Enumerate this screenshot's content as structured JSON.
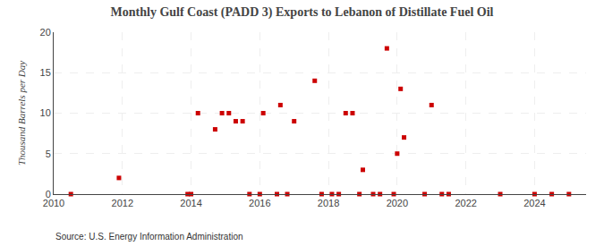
{
  "chart_data": {
    "type": "scatter",
    "title": "Monthly Gulf Coast (PADD 3) Exports to Lebanon of Distillate Fuel Oil",
    "ylabel": "Thousand Barrels per Day",
    "annotations": [
      "Source: U.S. Energy Information Administration"
    ],
    "color": "#cc0000",
    "marker": "square",
    "grid": true,
    "xlim": [
      2010,
      2025.5
    ],
    "xticks": [
      2010,
      2012,
      2014,
      2016,
      2018,
      2020,
      2022,
      2024
    ],
    "ylim": [
      0,
      20
    ],
    "yticks": [
      0,
      5,
      10,
      15,
      20
    ],
    "x": [
      2010.5,
      2011.9,
      2013.9,
      2014.0,
      2014.2,
      2014.7,
      2014.9,
      2015.1,
      2015.3,
      2015.5,
      2015.7,
      2016.0,
      2016.1,
      2016.5,
      2016.6,
      2016.8,
      2017.0,
      2017.6,
      2017.8,
      2018.1,
      2018.3,
      2018.5,
      2018.7,
      2018.9,
      2019.0,
      2019.3,
      2019.5,
      2019.7,
      2019.9,
      2020.0,
      2020.1,
      2020.2,
      2020.8,
      2021.0,
      2021.3,
      2021.5,
      2023.0,
      2024.0,
      2024.5,
      2025.0
    ],
    "values": [
      0,
      2,
      0,
      0,
      10,
      8,
      10,
      10,
      9,
      9,
      0,
      0,
      10,
      0,
      11,
      0,
      9,
      14,
      0,
      0,
      0,
      10,
      10,
      0,
      3,
      0,
      0,
      18,
      0,
      5,
      13,
      7,
      0,
      11,
      0,
      0,
      0,
      0,
      0,
      0
    ]
  }
}
